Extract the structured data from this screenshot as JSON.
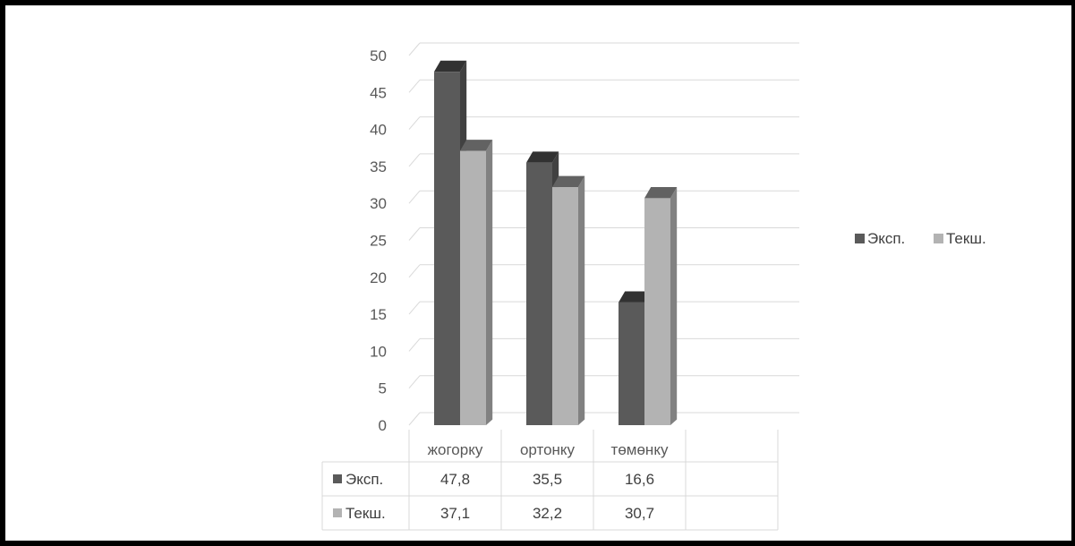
{
  "chart_data": {
    "type": "bar",
    "subtype": "3d-clustered-column-with-data-table",
    "categories": [
      "жогорку",
      "ортонку",
      "төмөнку"
    ],
    "series": [
      {
        "name": "Эксп.",
        "values": [
          47.8,
          35.5,
          16.6
        ],
        "value_labels": [
          "47,8",
          "35,5",
          "16,6"
        ],
        "color": "#5a5a5a"
      },
      {
        "name": "Текш.",
        "values": [
          37.1,
          32.2,
          30.7
        ],
        "value_labels": [
          "37,1",
          "32,2",
          "30,7"
        ],
        "color": "#b3b3b3"
      }
    ],
    "ylim": [
      0,
      50
    ],
    "yticks": [
      0,
      5,
      10,
      15,
      20,
      25,
      30,
      35,
      40,
      45,
      50
    ],
    "title": "",
    "xlabel": "",
    "ylabel": "",
    "grid": true,
    "legend_position": "right",
    "data_table": true
  },
  "colors": {
    "grid": "#d9d9d9",
    "axis_text": "#595959",
    "frame": "#000000"
  }
}
